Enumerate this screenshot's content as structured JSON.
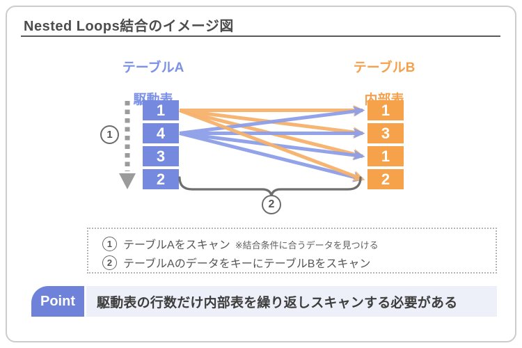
{
  "title": "Nested Loops結合のイメージ図",
  "table_a": {
    "name": "テーブルA",
    "role": "駆動表",
    "rows": [
      "1",
      "4",
      "3",
      "2"
    ],
    "cell_color": "#7589DE",
    "header_color": "#7B90E7"
  },
  "table_b": {
    "name": "テーブルB",
    "role": "内部表",
    "rows": [
      "1",
      "3",
      "1",
      "2"
    ],
    "cell_color": "#F5A24A",
    "header_color": "#F5A04C"
  },
  "annotations": {
    "step1_num": "1",
    "step2_num": "2",
    "scan_direction": "table A scanned top to bottom (dashed gray arrow)",
    "arrows": "each scanned row of table A (rows 1 and 4) fans out to all 4 rows of table B",
    "arrow_color_from_row1": "#F6B26B",
    "arrow_color_from_row2": "#8D9FE8"
  },
  "legend": {
    "items": [
      {
        "num": "1",
        "text": "テーブルAをスキャン",
        "note": "※結合条件に合うデータを見つける"
      },
      {
        "num": "2",
        "text": "テーブルAのデータをキーにテーブルBをスキャン",
        "note": ""
      }
    ]
  },
  "point": {
    "label": "Point",
    "text": "駆動表の行数だけ内部表を繰り返しスキャンする必要がある",
    "badge_color": "#6F82D9",
    "bar_bg": "#EDF0F8"
  },
  "colors": {
    "card_border": "#CCCCCC",
    "title_text": "#4C4C4C",
    "gray_arrow": "#9B9B9B",
    "brace": "#6E6E6E"
  }
}
